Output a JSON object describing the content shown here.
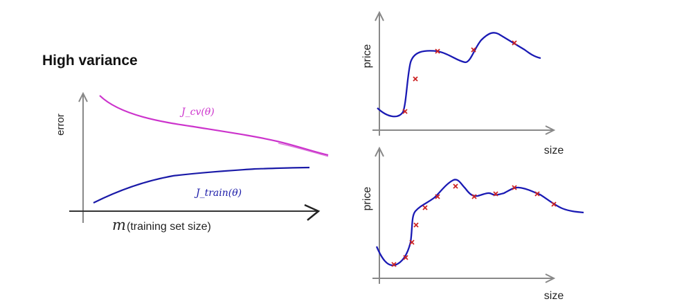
{
  "title": "High variance",
  "learning_curve": {
    "ylabel": "error",
    "xlabel_symbol": "m",
    "xlabel": "(training set size)",
    "cv_label": "J_cv(θ)",
    "train_label": "J_train(θ)",
    "cv_color": "#cc33cc",
    "train_color": "#1a1aa8"
  },
  "fit_plot_top": {
    "ylabel": "price",
    "xlabel": "size"
  },
  "fit_plot_bottom": {
    "ylabel": "price",
    "xlabel": "size"
  },
  "colors": {
    "axis": "#888888",
    "fit_curve": "#1a1ab4",
    "marker": "#cc2222"
  }
}
